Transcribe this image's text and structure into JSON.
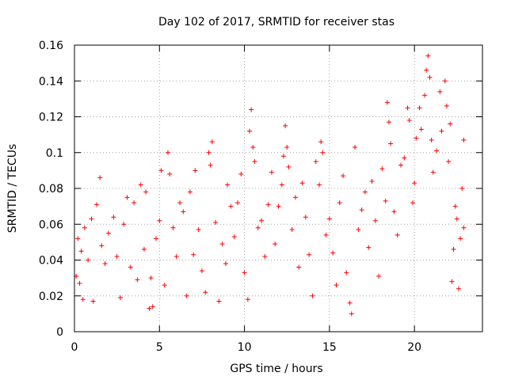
{
  "chart_data": {
    "type": "scatter",
    "title": "Day 102 of 2017, SRMTID for receiver stas",
    "xlabel": "GPS time / hours",
    "ylabel": "SRMTID / TECUs",
    "xlim": [
      0,
      24
    ],
    "ylim": [
      0,
      0.16
    ],
    "xticks": [
      0,
      5,
      10,
      15,
      20
    ],
    "xtick_labels": [
      "0",
      "5",
      "10",
      "15",
      "20"
    ],
    "yticks": [
      0,
      0.02,
      0.04,
      0.06,
      0.08,
      0.1,
      0.12,
      0.14,
      0.16
    ],
    "ytick_labels": [
      "0",
      "0.02",
      "0.04",
      "0.06",
      "0.08",
      "0.1",
      "0.12",
      "0.14",
      "0.16"
    ],
    "grid": true,
    "marker": "+",
    "marker_color": "#ff0000",
    "series": [
      {
        "name": "SRMTID",
        "points": [
          [
            0.1,
            0.031
          ],
          [
            0.2,
            0.052
          ],
          [
            0.3,
            0.027
          ],
          [
            0.4,
            0.045
          ],
          [
            0.5,
            0.018
          ],
          [
            0.6,
            0.058
          ],
          [
            0.8,
            0.04
          ],
          [
            1.0,
            0.063
          ],
          [
            1.1,
            0.017
          ],
          [
            1.3,
            0.071
          ],
          [
            1.5,
            0.086
          ],
          [
            1.6,
            0.048
          ],
          [
            1.8,
            0.038
          ],
          [
            2.0,
            0.055
          ],
          [
            2.3,
            0.064
          ],
          [
            2.5,
            0.042
          ],
          [
            2.7,
            0.019
          ],
          [
            2.9,
            0.06
          ],
          [
            3.1,
            0.075
          ],
          [
            3.3,
            0.036
          ],
          [
            3.5,
            0.072
          ],
          [
            3.7,
            0.029
          ],
          [
            3.9,
            0.082
          ],
          [
            4.1,
            0.046
          ],
          [
            4.2,
            0.078
          ],
          [
            4.4,
            0.013
          ],
          [
            4.5,
            0.03
          ],
          [
            4.6,
            0.014
          ],
          [
            4.8,
            0.052
          ],
          [
            5.0,
            0.062
          ],
          [
            5.1,
            0.09
          ],
          [
            5.3,
            0.026
          ],
          [
            5.5,
            0.1
          ],
          [
            5.6,
            0.088
          ],
          [
            5.8,
            0.058
          ],
          [
            6.0,
            0.042
          ],
          [
            6.2,
            0.072
          ],
          [
            6.4,
            0.067
          ],
          [
            6.6,
            0.02
          ],
          [
            6.8,
            0.078
          ],
          [
            7.0,
            0.043
          ],
          [
            7.1,
            0.09
          ],
          [
            7.3,
            0.057
          ],
          [
            7.5,
            0.034
          ],
          [
            7.7,
            0.022
          ],
          [
            7.9,
            0.1
          ],
          [
            8.0,
            0.093
          ],
          [
            8.1,
            0.106
          ],
          [
            8.3,
            0.061
          ],
          [
            8.5,
            0.017
          ],
          [
            8.7,
            0.049
          ],
          [
            8.9,
            0.038
          ],
          [
            9.0,
            0.082
          ],
          [
            9.2,
            0.07
          ],
          [
            9.4,
            0.053
          ],
          [
            9.6,
            0.072
          ],
          [
            9.8,
            0.088
          ],
          [
            10.0,
            0.033
          ],
          [
            10.2,
            0.018
          ],
          [
            10.3,
            0.112
          ],
          [
            10.4,
            0.124
          ],
          [
            10.5,
            0.103
          ],
          [
            10.6,
            0.095
          ],
          [
            10.8,
            0.058
          ],
          [
            11.0,
            0.062
          ],
          [
            11.2,
            0.042
          ],
          [
            11.4,
            0.071
          ],
          [
            11.6,
            0.089
          ],
          [
            11.8,
            0.049
          ],
          [
            12.0,
            0.07
          ],
          [
            12.2,
            0.082
          ],
          [
            12.3,
            0.098
          ],
          [
            12.4,
            0.115
          ],
          [
            12.5,
            0.103
          ],
          [
            12.6,
            0.092
          ],
          [
            12.8,
            0.057
          ],
          [
            13.0,
            0.075
          ],
          [
            13.2,
            0.036
          ],
          [
            13.4,
            0.083
          ],
          [
            13.6,
            0.064
          ],
          [
            13.8,
            0.043
          ],
          [
            14.0,
            0.02
          ],
          [
            14.2,
            0.095
          ],
          [
            14.4,
            0.082
          ],
          [
            14.5,
            0.106
          ],
          [
            14.6,
            0.1
          ],
          [
            14.8,
            0.054
          ],
          [
            15.0,
            0.063
          ],
          [
            15.2,
            0.044
          ],
          [
            15.4,
            0.026
          ],
          [
            15.6,
            0.072
          ],
          [
            15.8,
            0.087
          ],
          [
            16.0,
            0.033
          ],
          [
            16.2,
            0.016
          ],
          [
            16.3,
            0.01
          ],
          [
            16.5,
            0.103
          ],
          [
            16.7,
            0.057
          ],
          [
            16.9,
            0.068
          ],
          [
            17.1,
            0.078
          ],
          [
            17.3,
            0.047
          ],
          [
            17.5,
            0.084
          ],
          [
            17.7,
            0.062
          ],
          [
            17.9,
            0.031
          ],
          [
            18.1,
            0.091
          ],
          [
            18.3,
            0.073
          ],
          [
            18.4,
            0.128
          ],
          [
            18.5,
            0.117
          ],
          [
            18.6,
            0.105
          ],
          [
            18.8,
            0.067
          ],
          [
            19.0,
            0.054
          ],
          [
            19.2,
            0.093
          ],
          [
            19.4,
            0.097
          ],
          [
            19.6,
            0.125
          ],
          [
            19.7,
            0.118
          ],
          [
            19.9,
            0.072
          ],
          [
            20.0,
            0.083
          ],
          [
            20.1,
            0.108
          ],
          [
            20.3,
            0.125
          ],
          [
            20.4,
            0.113
          ],
          [
            20.6,
            0.132
          ],
          [
            20.7,
            0.146
          ],
          [
            20.8,
            0.154
          ],
          [
            20.9,
            0.142
          ],
          [
            21.0,
            0.107
          ],
          [
            21.1,
            0.089
          ],
          [
            21.3,
            0.101
          ],
          [
            21.5,
            0.134
          ],
          [
            21.6,
            0.112
          ],
          [
            21.8,
            0.14
          ],
          [
            21.9,
            0.126
          ],
          [
            22.0,
            0.095
          ],
          [
            22.1,
            0.116
          ],
          [
            22.2,
            0.028
          ],
          [
            22.3,
            0.046
          ],
          [
            22.4,
            0.07
          ],
          [
            22.5,
            0.063
          ],
          [
            22.6,
            0.024
          ],
          [
            22.7,
            0.052
          ],
          [
            22.8,
            0.08
          ],
          [
            22.9,
            0.107
          ],
          [
            22.9,
            0.058
          ]
        ]
      }
    ]
  }
}
